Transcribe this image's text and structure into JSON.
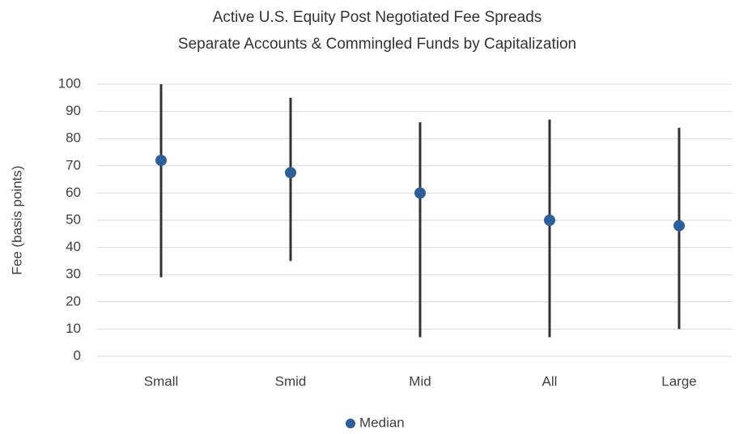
{
  "chart_data": {
    "type": "dot_range",
    "title": "Active U.S. Equity Post Negotiated Fee Spreads",
    "subtitle": "Separate Accounts & Commingled Funds by Capitalization",
    "y_label": "Fee (basis points)",
    "categories": [
      "Small",
      "Smid",
      "Mid",
      "All",
      "Large"
    ],
    "series": [
      {
        "name": "Median",
        "color": "#2f5f98",
        "values": [
          72,
          67.5,
          60,
          50,
          48
        ]
      }
    ],
    "ranges": {
      "low": [
        29,
        35,
        7,
        7,
        10
      ],
      "high": [
        100,
        95,
        86,
        87,
        84
      ],
      "color": "#333333"
    },
    "ylim": [
      0,
      100
    ],
    "yticks": [
      0,
      10,
      20,
      30,
      40,
      50,
      60,
      70,
      80,
      90,
      100
    ],
    "grid": true,
    "legend": "bottom"
  }
}
